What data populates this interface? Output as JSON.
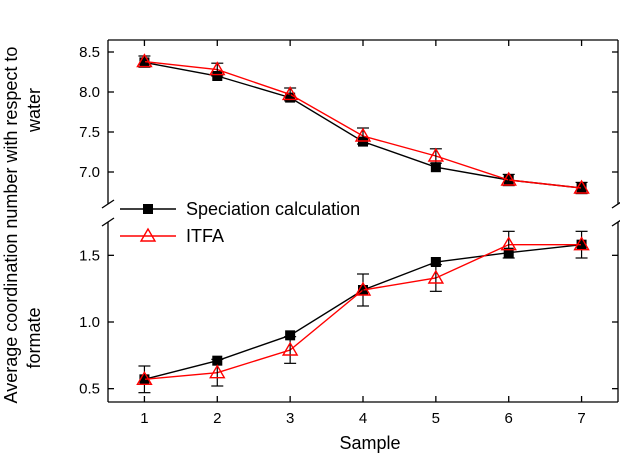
{
  "chart_data": {
    "type": "line",
    "title": "",
    "xlabel": "Sample",
    "ylabel": "Average coordination number with respect to",
    "ylabel_upper": "water",
    "ylabel_lower": "formate",
    "broken_y_axis": true,
    "x": [
      1,
      2,
      3,
      4,
      5,
      6,
      7
    ],
    "xlim": [
      0.5,
      7.5
    ],
    "x_ticks": [
      "1",
      "2",
      "3",
      "4",
      "5",
      "6",
      "7"
    ],
    "panels": [
      {
        "name": "upper",
        "ylim": [
          6.65,
          8.65
        ],
        "y_ticks": [
          "7.0",
          "7.5",
          "8.0",
          "8.5"
        ],
        "y_tick_values": [
          7.0,
          7.5,
          8.0,
          8.5
        ],
        "series": [
          {
            "name": "Speciation calculation",
            "color": "#000000",
            "marker": "filled-square",
            "values": [
              8.37,
              8.2,
              7.93,
              7.38,
              7.06,
              6.9,
              6.8
            ],
            "errors": [
              0,
              0,
              0,
              0,
              0,
              0,
              0
            ]
          },
          {
            "name": "ITFA",
            "color": "#ff0000",
            "marker": "open-triangle",
            "values": [
              8.38,
              8.28,
              7.97,
              7.45,
              7.2,
              6.9,
              6.8
            ],
            "errors": [
              0.07,
              0.08,
              0.08,
              0.1,
              0.09,
              0.07,
              0.07
            ]
          }
        ]
      },
      {
        "name": "lower",
        "ylim": [
          0.4,
          1.72
        ],
        "y_ticks": [
          "0.5",
          "1.0",
          "1.5"
        ],
        "y_tick_values": [
          0.5,
          1.0,
          1.5
        ],
        "series": [
          {
            "name": "Speciation calculation",
            "color": "#000000",
            "marker": "filled-square",
            "values": [
              0.57,
              0.71,
              0.9,
              1.24,
              1.45,
              1.52,
              1.58
            ],
            "errors": [
              0,
              0,
              0,
              0,
              0,
              0,
              0
            ]
          },
          {
            "name": "ITFA",
            "color": "#ff0000",
            "marker": "open-triangle",
            "values": [
              0.57,
              0.62,
              0.79,
              1.24,
              1.33,
              1.58,
              1.58
            ],
            "errors": [
              0.1,
              0.1,
              0.1,
              0.12,
              0.1,
              0.1,
              0.1
            ]
          }
        ]
      }
    ],
    "legend": {
      "placement": "center-left",
      "entries": [
        "Speciation calculation",
        "ITFA"
      ]
    }
  }
}
